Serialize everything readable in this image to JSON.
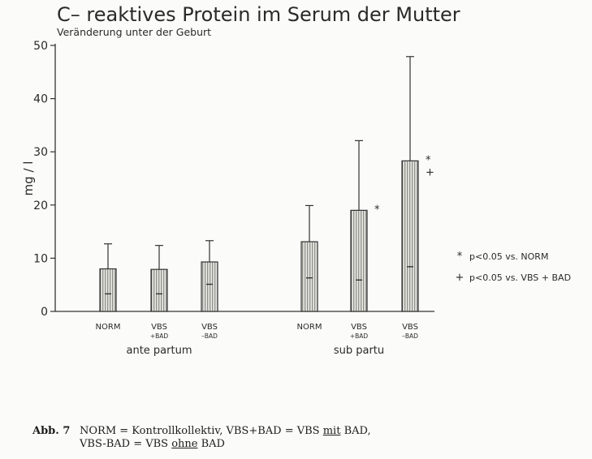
{
  "chart_data": {
    "type": "bar",
    "title": "C– reaktives Protein im Serum der Mutter",
    "subtitle": "Veränderung unter der Geburt",
    "ylabel": "mg / l",
    "ylim": [
      0,
      50
    ],
    "yticks": [
      "0",
      "10",
      "20",
      "30",
      "40",
      "50"
    ],
    "groups": [
      "ante partum",
      "sub partu"
    ],
    "bars": [
      {
        "group": "ante partum",
        "label": [
          "NORM"
        ],
        "value": 8,
        "error_upper": 12.7,
        "median": 3.3,
        "marks": []
      },
      {
        "group": "ante partum",
        "label": [
          "VBS",
          "+BAD"
        ],
        "value": 7.9,
        "error_upper": 12.4,
        "median": 3.3,
        "marks": []
      },
      {
        "group": "ante partum",
        "label": [
          "VBS",
          "–BAD"
        ],
        "value": 9.3,
        "error_upper": 13.3,
        "median": 5.1,
        "marks": []
      },
      {
        "group": "sub partu",
        "label": [
          "NORM"
        ],
        "value": 13.1,
        "error_upper": 19.9,
        "median": 6.3,
        "marks": []
      },
      {
        "group": "sub partu",
        "label": [
          "VBS",
          "+BAD"
        ],
        "value": 19,
        "error_upper": 32.1,
        "median": 5.9,
        "marks": [
          "*"
        ]
      },
      {
        "group": "sub partu",
        "label": [
          "VBS",
          "–BAD"
        ],
        "value": 28.3,
        "error_upper": 47.9,
        "median": 8.4,
        "marks": [
          "*",
          "+"
        ]
      }
    ],
    "legend": [
      {
        "symbol": "*",
        "text": "p<0.05 vs. NORM"
      },
      {
        "symbol": "+",
        "text": "p<0.05 vs. VBS + BAD"
      }
    ],
    "legend_position": "right",
    "grid": false
  },
  "caption": {
    "abb": "Abb. 7",
    "line1_a": "NORM = Kontrollkollektiv, VBS+BAD = VBS ",
    "line1_u": "mit",
    "line1_b": " BAD,",
    "line2_a": "VBS-BAD = VBS ",
    "line2_u": "ohne",
    "line2_b": " BAD"
  }
}
